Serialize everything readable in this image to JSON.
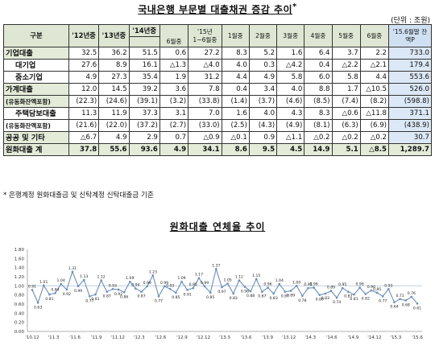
{
  "table_title": "국내은행 부문별 대출채권 증감 추이",
  "title_mark": "*",
  "unit": "(단위 : 조원)",
  "headers": {
    "group": "구분",
    "y12": "'12년중",
    "y13": "'13년중",
    "y14": "'14년중",
    "y14_sub": "6월중",
    "y15": "'15년 1~6월중",
    "m1": "1월중",
    "m2": "2월중",
    "m3": "3월중",
    "m4": "4월중",
    "m5": "5월중",
    "m6": "6월중",
    "last": "'15.6월말 잔액P"
  },
  "rows": [
    {
      "label": "기업대출",
      "cells": [
        "32.5",
        "36.2",
        "51.5",
        "0.6",
        "27.2",
        "8.3",
        "5.2",
        "1.6",
        "6.4",
        "3.7",
        "2.2",
        "733.0"
      ]
    },
    {
      "label": "대기업",
      "cells": [
        "27.6",
        "8.9",
        "16.1",
        "△1.3",
        "△4.0",
        "4.0",
        "0.3",
        "△4.2",
        "0.4",
        "△2.2",
        "△2.1",
        "179.4"
      ]
    },
    {
      "label": "중소기업",
      "cells": [
        "4.9",
        "27.3",
        "35.4",
        "1.9",
        "31.2",
        "4.4",
        "4.9",
        "5.8",
        "6.0",
        "5.8",
        "4.4",
        "553.6"
      ]
    },
    {
      "label": "가계대출",
      "cells": [
        "12.0",
        "14.5",
        "39.2",
        "3.6",
        "7.8",
        "0.4",
        "3.4",
        "4.0",
        "8.8",
        "1.7",
        "△10.5",
        "526.0"
      ]
    },
    {
      "label": "(유동화잔액포함)",
      "cells": [
        "(22.3)",
        "(24.6)",
        "(39.1)",
        "(3.2)",
        "(33.8)",
        "(1.4)",
        "(3.7)",
        "(4.6)",
        "(8.5)",
        "(7.4)",
        "(8.2)",
        "(598.8)"
      ]
    },
    {
      "label": "주택담보대출",
      "cells": [
        "11.3",
        "11.9",
        "37.3",
        "3.1",
        "7.0",
        "1.6",
        "4.0",
        "4.3",
        "8.3",
        "△0.6",
        "△11.8",
        "371.1"
      ]
    },
    {
      "label": "(유동화잔액포함)",
      "cells": [
        "(21.6)",
        "(22.0)",
        "(37.2)",
        "(2.7)",
        "(33.0)",
        "(2.5)",
        "(4.3)",
        "(4.9)",
        "(8.1)",
        "(6.3)",
        "(6.9)",
        "(438.9)"
      ]
    },
    {
      "label": "공공 및 기타",
      "cells": [
        "△6.7",
        "4.9",
        "2.9",
        "0.7",
        "△0.9",
        "△0.1",
        "0.9",
        "△1.1",
        "△0.2",
        "△0.2",
        "△0.2",
        "30.7"
      ]
    },
    {
      "label": "원화대출 계",
      "cells": [
        "37.8",
        "55.6",
        "93.6",
        "4.9",
        "34.1",
        "8.6",
        "9.5",
        "4.5",
        "14.9",
        "5.1",
        "△8.5",
        "1,289.7"
      ]
    }
  ],
  "note": "* 은행계정 원화대출금 및 신탁계정 신탁대출금 기준",
  "chart_title": "원화대출 연체율 추이",
  "chart_data": {
    "type": "line",
    "title": "원화대출 연체율 추이",
    "ylim": [
      0,
      1.8
    ],
    "yticks": [
      "0.00",
      "0.20",
      "0.40",
      "0.60",
      "0.80",
      "1.00",
      "1.20",
      "1.40",
      "1.60",
      "1.80"
    ],
    "reference_line": 1.0,
    "xticks": [
      "'10.12",
      "'11.3",
      "'11.6",
      "'11.9",
      "'11.12",
      "'12.3",
      "'12.6",
      "'12.9",
      "'12.12",
      "'13.3",
      "'13.6",
      "'13.9",
      "'13.12",
      "'14.3",
      "'14.6",
      "'14.9",
      "'14.12",
      "'15.3",
      "'15.6"
    ],
    "values": [
      0.91,
      0.63,
      1.01,
      0.81,
      0.84,
      1.04,
      0.92,
      1.31,
      0.99,
      1.13,
      0.77,
      0.81,
      1.12,
      0.87,
      0.93,
      0.92,
      0.86,
      1.09,
      0.94,
      0.87,
      0.99,
      1.23,
      0.77,
      0.99,
      0.93,
      0.85,
      1.09,
      0.91,
      0.95,
      1.17,
      0.99,
      0.85,
      1.37,
      0.97,
      1.05,
      0.83,
      1.12,
      0.98,
      0.88,
      1.15,
      0.87,
      0.96,
      0.83,
      1.04,
      0.87,
      0.89,
      1.0,
      0.78,
      0.95,
      0.96,
      0.8,
      0.83,
      0.89,
      0.74,
      0.95,
      0.87,
      0.81,
      0.96,
      0.82,
      0.9,
      0.85,
      0.77,
      0.93,
      0.64,
      0.71,
      0.68,
      0.76,
      0.61
    ],
    "labels": [
      "0.91",
      "0.63",
      "1.01",
      "0.81",
      "0.84",
      "1.04",
      "0.92",
      "1.31",
      "0.99",
      "1.13",
      "0.77",
      "0.81",
      "1.12",
      "0.87",
      "0.93",
      "0.92",
      "0.86",
      "1.09",
      "0.94",
      "0.87",
      "0.99",
      "1.23",
      "0.77",
      "0.99",
      "0.93",
      "0.85",
      "1.09",
      "0.91",
      "0.95",
      "1.17",
      "0.99",
      "0.85",
      "1.37",
      "0.97",
      "1.05",
      "0.83",
      "1.12",
      "0.98",
      "0.88",
      "1.15",
      "0.87",
      "0.96",
      "0.83",
      "1.04",
      "0.87",
      "0.89",
      "1.00",
      "0.78",
      "0.95",
      "0.96",
      "0.80",
      "0.83",
      "0.89",
      "0.74",
      "0.95",
      "0.87",
      "0.81",
      "0.96",
      "0.82",
      "0.90",
      "0.85",
      "0.77",
      "0.93",
      "0.64",
      "0.71",
      "0.68",
      "0.76",
      "0.61"
    ],
    "grid": false,
    "line_color": "#6b8fb8",
    "ref_color": "#b9c9dc"
  }
}
